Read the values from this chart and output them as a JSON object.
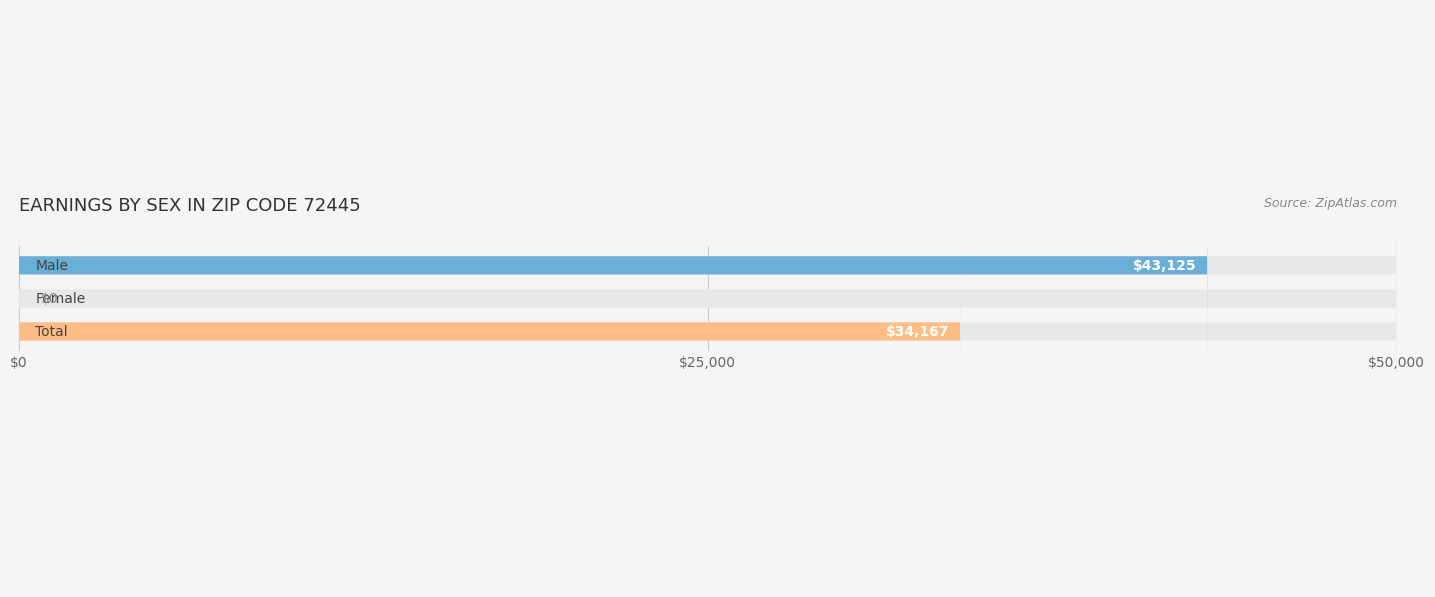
{
  "title": "EARNINGS BY SEX IN ZIP CODE 72445",
  "source_text": "Source: ZipAtlas.com",
  "categories": [
    "Male",
    "Female",
    "Total"
  ],
  "values": [
    43125,
    0,
    34167
  ],
  "bar_colors": [
    "#6baed6",
    "#f4a0b5",
    "#fdbe85"
  ],
  "label_colors": [
    "white",
    "#888888",
    "white"
  ],
  "value_labels": [
    "$43,125",
    "$0",
    "$34,167"
  ],
  "xlim": [
    0,
    50000
  ],
  "xticks": [
    0,
    25000,
    50000
  ],
  "xticklabels": [
    "$0",
    "$25,000",
    "$50,000"
  ],
  "background_color": "#f5f5f5",
  "bar_background_color": "#e8e8e8",
  "title_fontsize": 13,
  "tick_fontsize": 10,
  "source_fontsize": 9,
  "bar_height": 0.55,
  "bar_label_fontsize": 10
}
